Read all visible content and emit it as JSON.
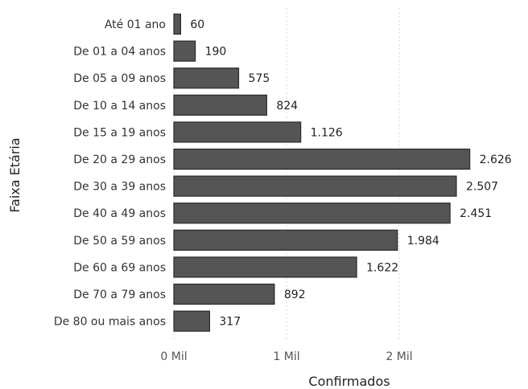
{
  "chart_data": {
    "type": "bar",
    "orientation": "horizontal",
    "categories": [
      "Até 01 ano",
      "De 01 a 04 anos",
      "De 05 a 09 anos",
      "De 10 a 14 anos",
      "De 15 a 19 anos",
      "De 20 a 29 anos",
      "De 30 a 39 anos",
      "De 40 a 49 anos",
      "De 50 a 59 anos",
      "De 60 a 69 anos",
      "De 70 a 79 anos",
      "De 80 ou mais anos"
    ],
    "values": [
      60,
      190,
      575,
      824,
      1126,
      2626,
      2507,
      2451,
      1984,
      1622,
      892,
      317
    ],
    "value_labels": [
      "60",
      "190",
      "575",
      "824",
      "1.126",
      "2.626",
      "2.507",
      "2.451",
      "1.984",
      "1.622",
      "892",
      "317"
    ],
    "xlabel": "Confirmados",
    "ylabel": "Faixa Etária",
    "xlim": [
      0,
      2626
    ],
    "x_ticks": [
      0,
      1000,
      2000
    ],
    "x_tick_labels": [
      "0 Mil",
      "1 Mil",
      "2 Mil"
    ],
    "grid": true,
    "bar_color": "#555555"
  }
}
